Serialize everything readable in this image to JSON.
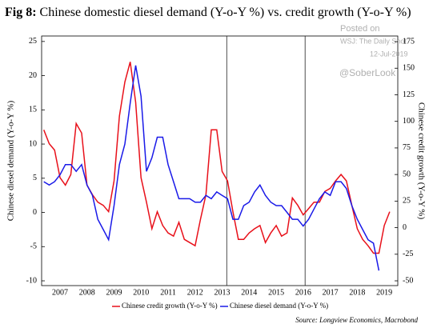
{
  "chart_data": {
    "type": "line",
    "figure_label": "Fig 8:",
    "title": "Chinese domestic diesel demand (Y-o-Y %) vs. credit growth (Y-o-Y %)",
    "ylabel": "Chinese diesel demand (Y-o-Y %)",
    "y2label": "Chinese credit growth (Y-o-Y %)",
    "source": "Source: Longview Economics, Macrobond",
    "annotations": [
      "Posted on",
      "WSJ: The Daily Shot",
      "12-Jul-2019",
      "@SoberLook"
    ],
    "vlines": [
      2013.67,
      2016.57
    ],
    "xlim": [
      2006.82,
      2020.0
    ],
    "xticks": [
      {
        "value": 2007.5,
        "label": "2007"
      },
      {
        "value": 2008.5,
        "label": "2008"
      },
      {
        "value": 2009.5,
        "label": "2009"
      },
      {
        "value": 2010.5,
        "label": "2010"
      },
      {
        "value": 2011.5,
        "label": "2011"
      },
      {
        "value": 2012.5,
        "label": "2012"
      },
      {
        "value": 2013.5,
        "label": "2013"
      },
      {
        "value": 2014.5,
        "label": "2014"
      },
      {
        "value": 2015.5,
        "label": "2015"
      },
      {
        "value": 2016.5,
        "label": "2016"
      },
      {
        "value": 2017.5,
        "label": "2017"
      },
      {
        "value": 2018.5,
        "label": "2018"
      },
      {
        "value": 2019.5,
        "label": "2019"
      }
    ],
    "ylim": [
      -10.7,
      25.8
    ],
    "yticks": [
      -10,
      -5,
      0,
      5,
      10,
      15,
      20,
      25
    ],
    "y2lim": [
      -54.5,
      180.3
    ],
    "y2ticks": [
      -50,
      -25,
      0,
      25,
      50,
      75,
      100,
      125,
      150,
      175
    ],
    "legend": "bottom",
    "x": [
      2006.9,
      2007.1,
      2007.3,
      2007.5,
      2007.7,
      2007.9,
      2008.1,
      2008.3,
      2008.5,
      2008.7,
      2008.9,
      2009.1,
      2009.3,
      2009.5,
      2009.7,
      2009.9,
      2010.1,
      2010.3,
      2010.5,
      2010.7,
      2010.9,
      2011.1,
      2011.3,
      2011.5,
      2011.7,
      2011.9,
      2012.1,
      2012.3,
      2012.5,
      2012.7,
      2012.9,
      2013.1,
      2013.3,
      2013.5,
      2013.7,
      2013.9,
      2014.1,
      2014.3,
      2014.5,
      2014.7,
      2014.9,
      2015.1,
      2015.3,
      2015.5,
      2015.7,
      2015.9,
      2016.1,
      2016.3,
      2016.5,
      2016.7,
      2016.9,
      2017.1,
      2017.3,
      2017.5,
      2017.7,
      2017.9,
      2018.1,
      2018.3,
      2018.5,
      2018.7,
      2018.9,
      2019.1,
      2019.3,
      2019.5,
      2019.7
    ],
    "series": [
      {
        "name": "Chinese credit growth (Y-o-Y %)",
        "color": "#e8101a",
        "axis": "y2",
        "values": [
          92,
          79,
          73,
          47,
          40,
          50,
          98,
          89,
          40,
          31,
          24,
          21,
          15,
          44,
          105,
          137,
          156,
          118,
          47,
          24,
          -1,
          15,
          2,
          -5,
          -8,
          5,
          -11,
          -14,
          -17,
          8,
          31,
          92,
          92,
          53,
          44,
          15,
          -11,
          -11,
          -5,
          -1,
          2,
          -14,
          -5,
          2,
          -8,
          -5,
          28,
          21,
          12,
          18,
          24,
          24,
          34,
          37,
          44,
          50,
          44,
          21,
          -1,
          -11,
          -17,
          -24,
          -24,
          2,
          15
        ]
      },
      {
        "name": "Chinese diesel demand (Y-o-Y %)",
        "color": "#1a1ae8",
        "values": [
          4.5,
          4,
          4.5,
          5.5,
          7,
          7,
          6,
          7,
          4,
          2.5,
          -1,
          -2.5,
          -4,
          1,
          7,
          10,
          16,
          21.5,
          17,
          6,
          8,
          11,
          11,
          7,
          4.5,
          2,
          2,
          2,
          1.5,
          1.5,
          2.5,
          2,
          3,
          2.5,
          2,
          -1,
          -1,
          1,
          1.5,
          3,
          4,
          2.5,
          1.5,
          1,
          1,
          0,
          -1,
          -1,
          -2,
          -1,
          0.5,
          2,
          3,
          2.5,
          4.5,
          4.5,
          3.5,
          1,
          -1,
          -2.5,
          -4,
          -4.5,
          -8.5,
          null,
          null
        ]
      }
    ]
  }
}
